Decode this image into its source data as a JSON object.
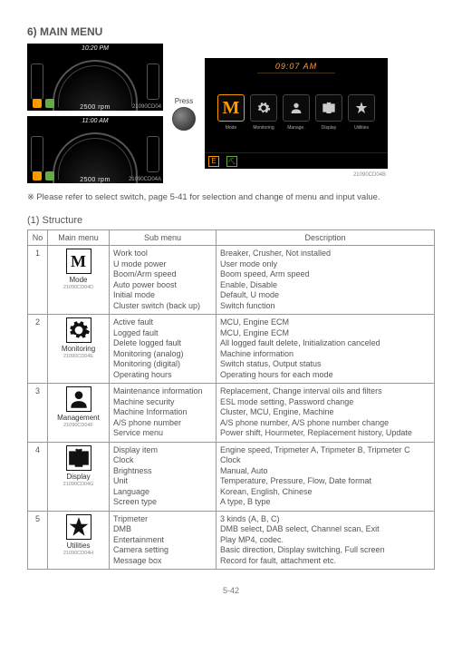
{
  "heading": "6) MAIN MENU",
  "press_label": "Press",
  "left_screens": [
    {
      "time": "10:20 PM",
      "readout": "2500 rpm",
      "ref": "21090CD04"
    },
    {
      "time": "11:00 AM",
      "readout": "2500 rpm",
      "ref": "21090CD04A"
    }
  ],
  "menu_screen": {
    "time": "09:07 AM",
    "icons": [
      {
        "name": "mode-icon",
        "label": "Mode",
        "glyph": "M",
        "color": "#f90",
        "active": true
      },
      {
        "name": "monitoring-icon",
        "label": "Monitoring",
        "glyph": "gear",
        "color": "#ccc"
      },
      {
        "name": "manage-icon",
        "label": "Manage.",
        "glyph": "person",
        "color": "#ccc"
      },
      {
        "name": "display-icon",
        "label": "Display",
        "glyph": "tv",
        "color": "#ccc"
      },
      {
        "name": "utilities-icon",
        "label": "Utilities",
        "glyph": "star",
        "color": "#ccc"
      }
    ],
    "badges": [
      "E",
      "🔧"
    ],
    "ref": "21090CD04B"
  },
  "note": "Please refer to select switch, page 5-41 for selection and change of menu and input value.",
  "structure_heading": "(1) Structure",
  "columns": [
    "No",
    "Main menu",
    "Sub menu",
    "Description"
  ],
  "rows": [
    {
      "no": "1",
      "main": {
        "glyph": "M",
        "label": "Mode",
        "ref": "21090CD04D"
      },
      "sub": [
        "Work tool",
        "U mode power",
        "Boom/Arm speed",
        "Auto power boost",
        "Initial mode",
        "Cluster switch (back up)"
      ],
      "desc": [
        "Breaker, Crusher, Not installed",
        "User mode only",
        "Boom speed, Arm speed",
        "Enable, Disable",
        "Default, U mode",
        "Switch function"
      ]
    },
    {
      "no": "2",
      "main": {
        "glyph": "gear",
        "label": "Monitoring",
        "ref": "21090CD04E"
      },
      "sub": [
        "Active fault",
        "Logged fault",
        "Delete logged fault",
        "Monitoring (analog)",
        "Monitoring (digital)",
        "Operating hours"
      ],
      "desc": [
        "MCU, Engine ECM",
        "MCU, Engine ECM",
        "All logged fault delete, Initialization canceled",
        "Machine information",
        "Switch status, Output status",
        "Operating hours for each mode"
      ]
    },
    {
      "no": "3",
      "main": {
        "glyph": "person",
        "label": "Management",
        "ref": "21090CD04F"
      },
      "sub": [
        "Maintenance information",
        "Machine security",
        "Machine Information",
        "A/S phone number",
        "Service menu"
      ],
      "desc": [
        "Replacement, Change interval oils and filters",
        "ESL mode setting, Password change",
        "Cluster, MCU, Engine, Machine",
        "A/S phone number, A/S phone number change",
        "Power shift, Hourmeter, Replacement history, Update"
      ]
    },
    {
      "no": "4",
      "main": {
        "glyph": "tv",
        "label": "Display",
        "ref": "21090CD04G"
      },
      "sub": [
        "Display item",
        "Clock",
        "Brightness",
        "Unit",
        "Language",
        "Screen type"
      ],
      "desc": [
        "Engine speed, Tripmeter A, Tripmeter B, Tripmeter C",
        "Clock",
        "Manual, Auto",
        "Temperature, Pressure, Flow, Date format",
        "Korean, English, Chinese",
        "A type, B type"
      ]
    },
    {
      "no": "5",
      "main": {
        "glyph": "star",
        "label": "Utilities",
        "ref": "21090CD04H"
      },
      "sub": [
        "Tripmeter",
        "DMB",
        "Entertainment",
        "Camera setting",
        "Message box"
      ],
      "desc": [
        "3 kinds (A, B, C)",
        "DMB select, DAB select, Channel scan, Exit",
        "Play MP4, codec.",
        "Basic direction, Display switching, Full screen",
        "Record for fault, attachment etc."
      ]
    }
  ],
  "page": "5-42"
}
